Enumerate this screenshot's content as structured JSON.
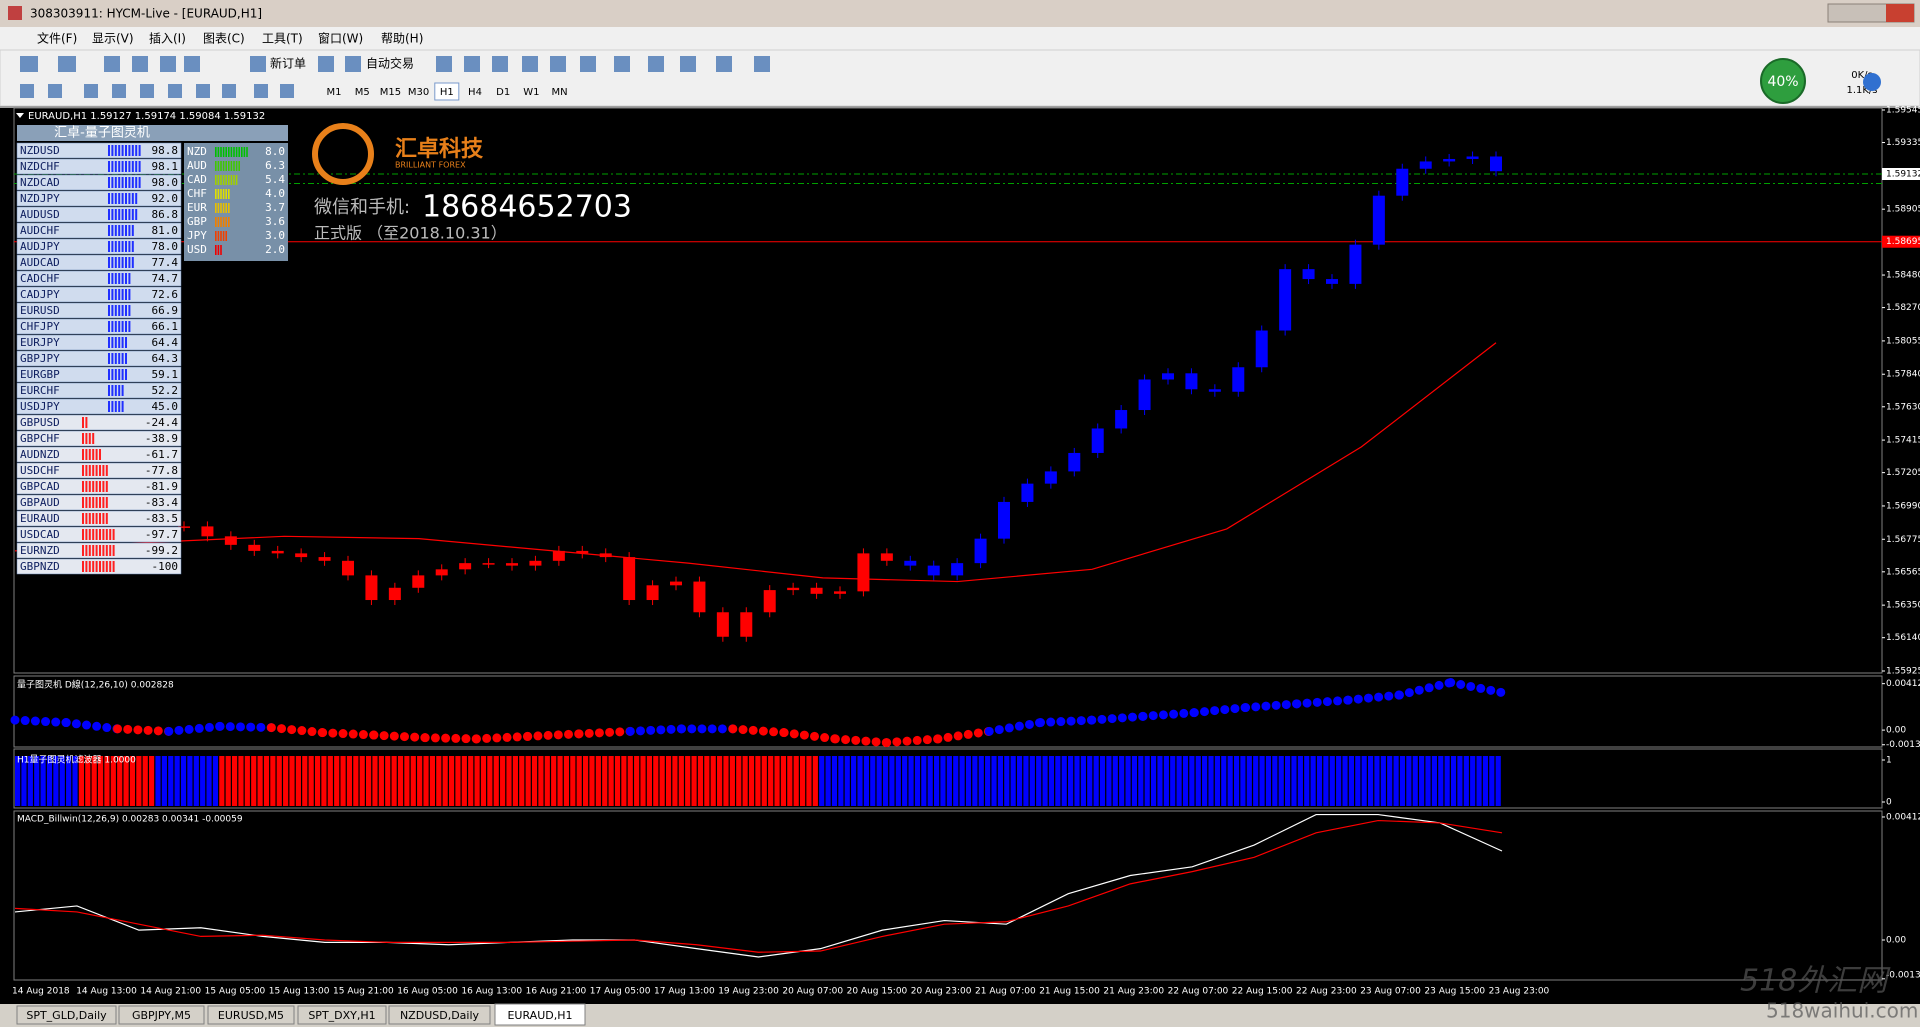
{
  "window": {
    "title": "308303911: HYCM-Live - [EURAUD,H1]"
  },
  "menu": [
    "文件(F)",
    "显示(V)",
    "插入(I)",
    "图表(C)",
    "工具(T)",
    "窗口(W)",
    "帮助(H)"
  ],
  "toolbar": {
    "new_order": "新订单",
    "auto_trade": "自动交易",
    "timeframes": [
      "M1",
      "M5",
      "M15",
      "M30",
      "H1",
      "H4",
      "D1",
      "W1",
      "MN"
    ],
    "active_timeframe": "H1"
  },
  "status": {
    "cpu": "40%",
    "down": "0K/s",
    "up": "1.1K/s"
  },
  "chart_header": "EURAUD,H1  1.59127 1.59174 1.59084 1.59132",
  "panel": {
    "title": "汇卓-量子图灵机",
    "pairs": [
      [
        "NZDUSD",
        "98.8"
      ],
      [
        "NZDCHF",
        "98.1"
      ],
      [
        "NZDCAD",
        "98.0"
      ],
      [
        "NZDJPY",
        "92.0"
      ],
      [
        "AUDUSD",
        "86.8"
      ],
      [
        "AUDCHF",
        "81.0"
      ],
      [
        "AUDJPY",
        "78.0"
      ],
      [
        "AUDCAD",
        "77.4"
      ],
      [
        "CADCHF",
        "74.7"
      ],
      [
        "CADJPY",
        "72.6"
      ],
      [
        "EURUSD",
        "66.9"
      ],
      [
        "CHFJPY",
        "66.1"
      ],
      [
        "EURJPY",
        "64.4"
      ],
      [
        "GBPJPY",
        "64.3"
      ],
      [
        "EURGBP",
        "59.1"
      ],
      [
        "EURCHF",
        "52.2"
      ],
      [
        "USDJPY",
        "45.0"
      ],
      [
        "GBPUSD",
        "-24.4"
      ],
      [
        "GBPCHF",
        "-38.9"
      ],
      [
        "AUDNZD",
        "-61.7"
      ],
      [
        "USDCHF",
        "-77.8"
      ],
      [
        "GBPCAD",
        "-81.9"
      ],
      [
        "GBPAUD",
        "-83.4"
      ],
      [
        "EURAUD",
        "-83.5"
      ],
      [
        "USDCAD",
        "-97.7"
      ],
      [
        "EURNZD",
        "-99.2"
      ],
      [
        "GBPNZD",
        "-100"
      ]
    ],
    "currencies": [
      [
        "NZD",
        "8.0"
      ],
      [
        "AUD",
        "6.3"
      ],
      [
        "CAD",
        "5.4"
      ],
      [
        "CHF",
        "4.0"
      ],
      [
        "EUR",
        "3.7"
      ],
      [
        "GBP",
        "3.6"
      ],
      [
        "JPY",
        "3.0"
      ],
      [
        "USD",
        "2.0"
      ]
    ],
    "currency_colors": [
      "#00c000",
      "#40c800",
      "#a0d000",
      "#e0e000",
      "#e8c000",
      "#f08000",
      "#f04000",
      "#f00000"
    ]
  },
  "logo": {
    "name": "汇卓科技",
    "tagline": "BRILLIANT FOREX",
    "contact_label": "微信和手机:",
    "phone": "18684652703",
    "edition": "正式版 （至2018.10.31）"
  },
  "main_chart": {
    "type": "candlestick",
    "closes": [
      1.56858,
      1.56794,
      1.56739,
      1.567,
      1.56684,
      1.5666,
      1.56636,
      1.56542,
      1.56383,
      1.56462,
      1.56542,
      1.56581,
      1.56621,
      1.56621,
      1.56605,
      1.56636,
      1.567,
      1.56684,
      1.5666,
      1.56383,
      1.56478,
      1.56502,
      1.56304,
      1.56146,
      1.56304,
      1.56447,
      1.56462,
      1.56423,
      1.56439,
      1.56684,
      1.56636,
      1.56605,
      1.56542,
      1.56621,
      1.56779,
      1.57016,
      1.57134,
      1.57213,
      1.57332,
      1.5749,
      1.57609,
      1.57806,
      1.57846,
      1.57743,
      1.57727,
      1.57885,
      1.58122,
      1.58518,
      1.58454,
      1.58423,
      1.58676,
      1.58992,
      1.59166,
      1.59213,
      1.59229,
      1.59245,
      1.5915
    ],
    "colors": [
      "#ff0000",
      "#ff0000",
      "#ff0000",
      "#ff0000",
      "#ff0000",
      "#ff0000",
      "#ff0000",
      "#ff0000",
      "#ff0000",
      "#ff0000",
      "#ff0000",
      "#ff0000",
      "#ff0000",
      "#ff0000",
      "#ff0000",
      "#ff0000",
      "#ff0000",
      "#ff0000",
      "#ff0000",
      "#ff0000",
      "#ff0000",
      "#ff0000",
      "#ff0000",
      "#ff0000",
      "#ff0000",
      "#ff0000",
      "#ff0000",
      "#ff0000",
      "#ff0000",
      "#ff0000",
      "#ff0000",
      "#0000ff",
      "#0000ff",
      "#0000ff",
      "#0000ff",
      "#0000ff",
      "#0000ff",
      "#0000ff",
      "#0000ff",
      "#0000ff",
      "#0000ff",
      "#0000ff",
      "#0000ff",
      "#0000ff",
      "#0000ff",
      "#0000ff",
      "#0000ff",
      "#0000ff",
      "#0000ff",
      "#0000ff",
      "#0000ff",
      "#0000ff",
      "#0000ff",
      "#0000ff",
      "#0000ff",
      "#0000ff",
      "#0000ff"
    ],
    "ma": [
      1.567,
      1.56755,
      1.56794,
      1.56779,
      1.567,
      1.56621,
      1.56526,
      1.56502,
      1.56581,
      1.56842,
      1.57371,
      1.58043
    ],
    "ma_color": "#ff0000",
    "ylim": [
      1.55925,
      1.59545
    ],
    "yticks": [
      {
        "value": 1.59545,
        "label": "1.59545"
      },
      {
        "value": 1.59335,
        "label": "1.59335"
      },
      {
        "value": 1.58905,
        "label": "1.58905"
      },
      {
        "value": 1.5848,
        "label": "1.58480"
      },
      {
        "value": 1.5827,
        "label": "1.58270"
      },
      {
        "value": 1.58055,
        "label": "1.58055"
      },
      {
        "value": 1.5784,
        "label": "1.57840"
      },
      {
        "value": 1.5763,
        "label": "1.57630"
      },
      {
        "value": 1.57415,
        "label": "1.57415"
      },
      {
        "value": 1.57205,
        "label": "1.57205"
      },
      {
        "value": 1.5699,
        "label": "1.56990"
      },
      {
        "value": 1.56775,
        "label": "1.56775"
      },
      {
        "value": 1.56565,
        "label": "1.56565"
      },
      {
        "value": 1.5635,
        "label": "1.56350"
      },
      {
        "value": 1.5614,
        "label": "1.56140"
      },
      {
        "value": 1.55925,
        "label": "1.55925"
      }
    ],
    "bid": {
      "value": 1.59132,
      "label": "1.59132",
      "color": "#00a000"
    },
    "levels": [
      {
        "value": 1.58695,
        "label": "1.58695",
        "color": "#ff0000"
      },
      {
        "value": 1.59071,
        "color": "#00a000"
      }
    ],
    "xticks": [
      "14 Aug 2018",
      "14 Aug 13:00",
      "14 Aug 21:00",
      "15 Aug 05:00",
      "15 Aug 13:00",
      "15 Aug 21:00",
      "16 Aug 05:00",
      "16 Aug 13:00",
      "16 Aug 21:00",
      "17 Aug 05:00",
      "17 Aug 13:00",
      "19 Aug 23:00",
      "20 Aug 07:00",
      "20 Aug 15:00",
      "20 Aug 23:00",
      "21 Aug 07:00",
      "21 Aug 15:00",
      "21 Aug 23:00",
      "22 Aug 07:00",
      "22 Aug 15:00",
      "22 Aug 23:00",
      "23 Aug 07:00",
      "23 Aug 15:00",
      "23 Aug 23:00"
    ]
  },
  "indicator1": {
    "type": "dots",
    "title": "量子图灵机 D線(12,26,10) 0.002828",
    "values": [
      0.00089,
      0.00067,
      0.00011,
      -0.00011,
      0.00033,
      0.00022,
      -0.00022,
      -0.00044,
      -0.00067,
      -0.00078,
      -0.00056,
      -0.00033,
      -0.00011,
      0.00011,
      0.00011,
      -0.00022,
      -0.00078,
      -0.00111,
      -0.00078,
      -0.00011,
      0.00067,
      0.00089,
      0.00122,
      0.00155,
      0.002,
      0.00233,
      0.00266,
      0.00311,
      0.00422,
      0.00333
    ],
    "pos_color": "#0000ff",
    "neg_color": "#ff0000",
    "ylim": [
      -0.0015,
      0.0048
    ],
    "yticks": [
      {
        "value": 0.00412,
        "label": "0.00412"
      },
      {
        "value": 0,
        "label": "0.00"
      },
      {
        "value": -0.0013,
        "label": "-0.00130"
      }
    ]
  },
  "indicator2": {
    "type": "blocks",
    "title": "H1量子图灵机滤波器 1.0000",
    "blocks": [
      {
        "color": "#0000ff",
        "bars": 10
      },
      {
        "color": "#ff0000",
        "bars": 12
      },
      {
        "color": "#0000ff",
        "bars": 10
      },
      {
        "color": "#ff0000",
        "bars": 94
      },
      {
        "color": "#0000ff",
        "bars": 107
      }
    ],
    "ylim": [
      0,
      1
    ],
    "yticks": [
      1,
      0
    ]
  },
  "macd": {
    "type": "line",
    "title": "MACD_Billwin(12,26,9) 0.00283 0.00341 -0.00059",
    "series": [
      {
        "color": "#ffffff",
        "values": [
          0.00094,
          0.00114,
          0.00033,
          0.00041,
          0.00012,
          -8e-05,
          -8e-05,
          -0.00016,
          -8e-05,
          0,
          0,
          -0.00029,
          -0.00057,
          -0.00029,
          0.00033,
          0.00065,
          0.00053,
          0.00155,
          0.00216,
          0.00245,
          0.00318,
          0.0042,
          0.0042,
          0.00392,
          0.00298
        ]
      },
      {
        "color": "#ff0000",
        "values": [
          0.00106,
          0.00094,
          0.00053,
          0.00012,
          0.00016,
          0,
          -8e-05,
          -8e-05,
          -8e-05,
          -4e-05,
          0,
          -0.00016,
          -0.00041,
          -0.00037,
          0.00012,
          0.00053,
          0.00061,
          0.00114,
          0.00188,
          0.00229,
          0.00277,
          0.00359,
          0.004,
          0.00392,
          0.00359
        ]
      }
    ],
    "ylim": [
      -0.00134,
      0.00432
    ],
    "yticks": [
      {
        "value": 0.00412,
        "label": "0.00412"
      },
      {
        "value": 0,
        "label": "0.00"
      },
      {
        "value": -0.0013,
        "label": "-0.00130"
      }
    ]
  },
  "tabs": [
    "SPT_GLD,Daily",
    "GBPJPY,M5",
    "EURUSD,M5",
    "SPT_DXY,H1",
    "NZDUSD,Daily",
    "EURAUD,H1"
  ],
  "active_tab": 5,
  "watermark": {
    "brand": "518外汇网",
    "site": "518waihui.com"
  }
}
